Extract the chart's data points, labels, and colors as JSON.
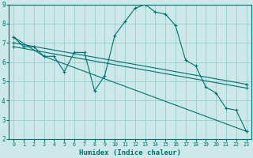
{
  "xlabel": "Humidex (Indice chaleur)",
  "ylabel": "",
  "bg_color": "#cce8e8",
  "grid_color": "#99cccc",
  "line_color": "#007070",
  "xlim": [
    -0.5,
    23.5
  ],
  "ylim": [
    2,
    9
  ],
  "yticks": [
    2,
    3,
    4,
    5,
    6,
    7,
    8,
    9
  ],
  "xticks": [
    0,
    1,
    2,
    3,
    4,
    5,
    6,
    7,
    8,
    9,
    10,
    11,
    12,
    13,
    14,
    15,
    16,
    17,
    18,
    19,
    20,
    21,
    22,
    23
  ],
  "series": [
    {
      "x": [
        0,
        1,
        2,
        3,
        4,
        5,
        6,
        7,
        8,
        9,
        10,
        11,
        12,
        13,
        14,
        15,
        16,
        17,
        18,
        19,
        20,
        21,
        22,
        23
      ],
      "y": [
        7.3,
        6.8,
        6.8,
        6.3,
        6.3,
        5.5,
        6.5,
        6.5,
        4.5,
        5.3,
        7.4,
        8.1,
        8.8,
        9.0,
        8.6,
        8.5,
        7.9,
        6.1,
        5.8,
        4.7,
        4.4,
        3.6,
        3.5,
        2.4
      ]
    },
    {
      "x": [
        0,
        3,
        23
      ],
      "y": [
        7.3,
        6.3,
        2.4
      ]
    },
    {
      "x": [
        0,
        23
      ],
      "y": [
        7.0,
        4.85
      ]
    },
    {
      "x": [
        0,
        23
      ],
      "y": [
        6.8,
        4.65
      ]
    }
  ]
}
